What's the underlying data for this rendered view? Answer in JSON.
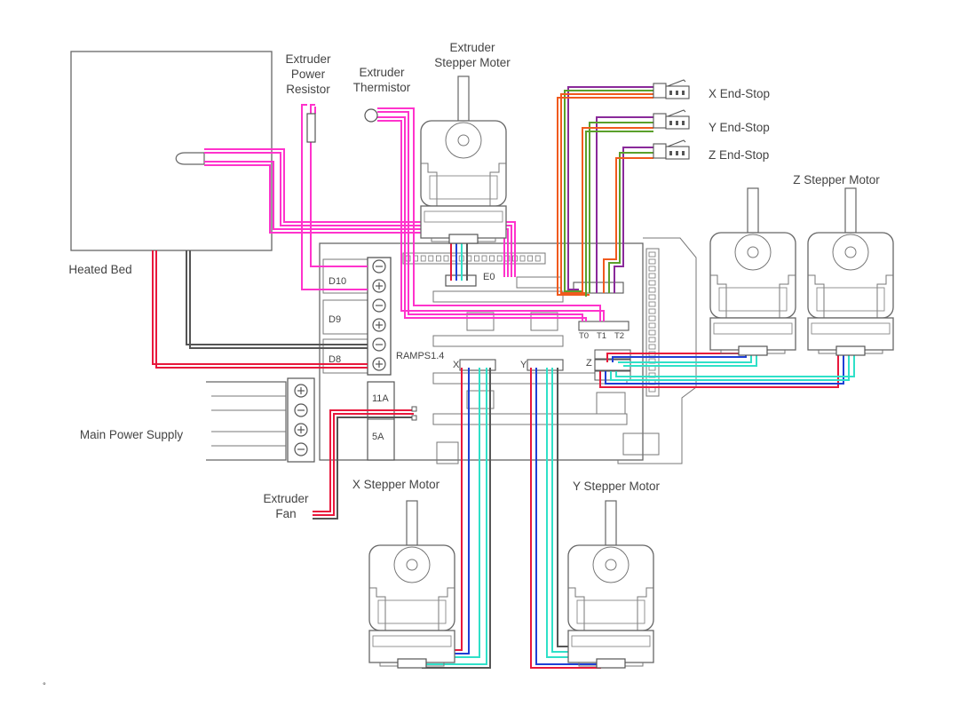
{
  "labels": {
    "extruder_power_resistor": [
      "Extruder",
      "Power",
      "Resistor"
    ],
    "extruder_thermistor": [
      "Extruder",
      "Thermistor"
    ],
    "extruder_stepper_motor": [
      "Extruder",
      "Stepper Moter"
    ],
    "x_endstop": "X End-Stop",
    "y_endstop": "Y End-Stop",
    "z_endstop": "Z End-Stop",
    "z_stepper_motor": "Z Stepper Motor",
    "heated_bed": "Heated Bed",
    "main_power_supply": "Main Power Supply",
    "extruder_fan": [
      "Extruder",
      "Fan"
    ],
    "x_stepper_motor": "X Stepper Motor",
    "y_stepper_motor": "Y Stepper Motor",
    "board_name": "RAMPS1.4",
    "d10": "D10",
    "d9": "D9",
    "d8": "D8",
    "e0": "E0",
    "t0": "T0",
    "t1": "T1",
    "t2": "T2",
    "x_axis": "X",
    "y_axis": "Y",
    "z_axis": "Z",
    "fuse_11a": "11A",
    "fuse_5a": "5A",
    "footnote": "°"
  },
  "colors": {
    "heater_wire": "#ff33cc",
    "power_red": "#e8183c",
    "ground_black": "#555555",
    "motor_blue": "#1f3fd6",
    "motor_cyan": "#2fe0c8",
    "endstop_purple": "#8a2a9a",
    "endstop_green": "#5aa02c",
    "endstop_orange": "#f05a1e"
  }
}
